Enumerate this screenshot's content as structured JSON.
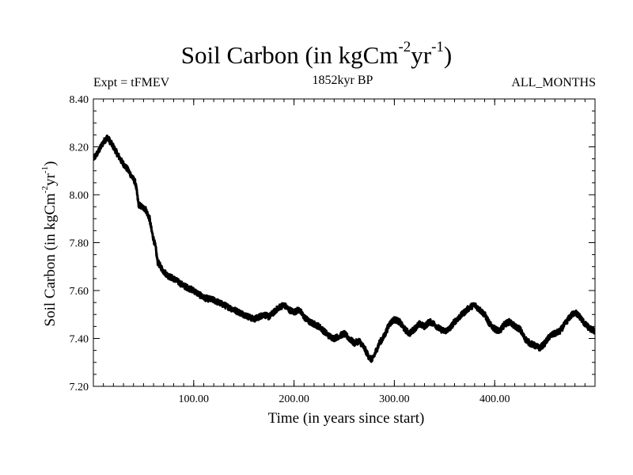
{
  "header": {
    "title_main": "Soil Carbon (in kgCm",
    "title_exp1": "-2",
    "title_mid": "yr",
    "title_exp2": "-1",
    "title_close": ")",
    "expt": "Expt = tFMEV",
    "period": "1852kyr BP",
    "months": "ALL_MONTHS"
  },
  "axes": {
    "xlabel": "Time (in years since start)",
    "ylabel_main": "Soil Carbon (in kgCm",
    "ylabel_exp1": "-2",
    "ylabel_mid": "yr",
    "ylabel_exp2": "-1",
    "ylabel_close": ")"
  },
  "chart_data": {
    "type": "line",
    "title": "Soil Carbon (in kgCm-2yr-1)",
    "xlabel": "Time (in years since start)",
    "ylabel": "Soil Carbon (in kgCm-2yr-1)",
    "xlim": [
      0,
      500
    ],
    "ylim": [
      7.2,
      8.4
    ],
    "x_ticks": [
      100,
      200,
      300,
      400
    ],
    "x_tick_labels": [
      "100.00",
      "200.00",
      "300.00",
      "400.00"
    ],
    "y_ticks": [
      7.2,
      7.4,
      7.6,
      7.8,
      8.0,
      8.2,
      8.4
    ],
    "y_tick_labels": [
      "7.20",
      "7.40",
      "7.60",
      "7.80",
      "8.00",
      "8.20",
      "8.40"
    ],
    "noise_amplitude": 0.012,
    "series": [
      {
        "name": "Soil Carbon",
        "x": [
          0,
          5,
          10,
          14,
          20,
          28,
          35,
          42,
          45,
          48,
          52,
          56,
          58,
          62,
          64,
          67,
          70,
          75,
          80,
          90,
          100,
          110,
          120,
          130,
          140,
          150,
          160,
          165,
          170,
          175,
          180,
          185,
          190,
          195,
          200,
          205,
          210,
          215,
          220,
          225,
          230,
          235,
          240,
          245,
          250,
          255,
          260,
          265,
          270,
          275,
          278,
          282,
          285,
          290,
          295,
          300,
          305,
          310,
          315,
          320,
          325,
          330,
          335,
          340,
          345,
          350,
          355,
          360,
          365,
          370,
          375,
          380,
          385,
          390,
          395,
          400,
          405,
          410,
          415,
          420,
          425,
          430,
          435,
          440,
          445,
          450,
          455,
          460,
          465,
          470,
          475,
          480,
          485,
          490,
          495,
          500
        ],
        "y": [
          8.15,
          8.18,
          8.22,
          8.24,
          8.2,
          8.14,
          8.1,
          8.05,
          7.96,
          7.95,
          7.94,
          7.9,
          7.85,
          7.78,
          7.72,
          7.7,
          7.68,
          7.66,
          7.65,
          7.62,
          7.6,
          7.57,
          7.56,
          7.54,
          7.52,
          7.5,
          7.48,
          7.49,
          7.5,
          7.49,
          7.51,
          7.53,
          7.54,
          7.52,
          7.51,
          7.52,
          7.49,
          7.47,
          7.46,
          7.45,
          7.43,
          7.41,
          7.4,
          7.41,
          7.42,
          7.4,
          7.38,
          7.39,
          7.36,
          7.32,
          7.31,
          7.35,
          7.38,
          7.41,
          7.46,
          7.48,
          7.47,
          7.44,
          7.42,
          7.44,
          7.46,
          7.45,
          7.47,
          7.46,
          7.44,
          7.43,
          7.44,
          7.47,
          7.49,
          7.51,
          7.53,
          7.54,
          7.52,
          7.5,
          7.46,
          7.44,
          7.43,
          7.46,
          7.47,
          7.45,
          7.44,
          7.4,
          7.38,
          7.37,
          7.36,
          7.38,
          7.41,
          7.42,
          7.43,
          7.46,
          7.49,
          7.51,
          7.49,
          7.46,
          7.44,
          7.43
        ]
      }
    ]
  },
  "colors": {
    "line": "#000000",
    "background": "#ffffff",
    "axis": "#000000"
  }
}
